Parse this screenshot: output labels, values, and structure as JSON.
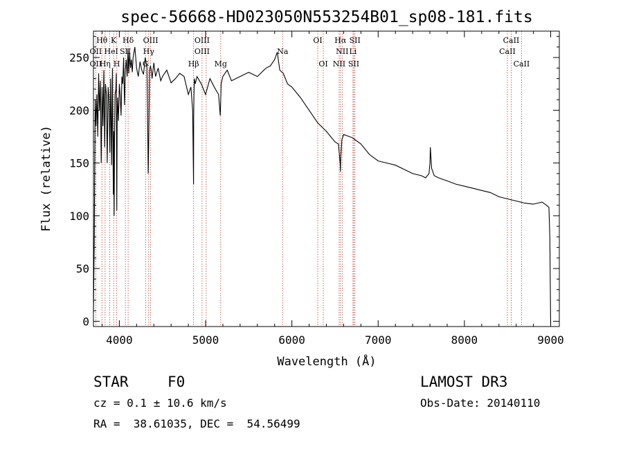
{
  "chart_data": {
    "type": "line",
    "title": "spec-56668-HD023050N553254B01_sp08-181.fits",
    "xlabel": "Wavelength (Å)",
    "ylabel": "Flux (relative)",
    "xlim": [
      3700,
      9100
    ],
    "ylim": [
      -5,
      275
    ],
    "xticks": [
      4000,
      5000,
      6000,
      7000,
      8000,
      9000
    ],
    "yticks": [
      0,
      50,
      100,
      150,
      200,
      250
    ],
    "grid": false,
    "series": [
      {
        "name": "flux",
        "x": [
          3700,
          3710,
          3720,
          3730,
          3740,
          3750,
          3760,
          3770,
          3780,
          3790,
          3800,
          3810,
          3820,
          3830,
          3840,
          3850,
          3860,
          3870,
          3880,
          3890,
          3900,
          3910,
          3920,
          3930,
          3935,
          3940,
          3945,
          3950,
          3960,
          3965,
          3970,
          3975,
          3980,
          3990,
          4000,
          4010,
          4020,
          4030,
          4040,
          4050,
          4060,
          4070,
          4080,
          4090,
          4095,
          4100,
          4105,
          4110,
          4120,
          4130,
          4140,
          4150,
          4160,
          4180,
          4200,
          4220,
          4240,
          4260,
          4280,
          4300,
          4320,
          4330,
          4335,
          4340,
          4345,
          4350,
          4360,
          4370,
          4380,
          4400,
          4420,
          4450,
          4480,
          4500,
          4550,
          4600,
          4650,
          4700,
          4750,
          4800,
          4830,
          4850,
          4860,
          4862,
          4865,
          4870,
          4880,
          4900,
          4950,
          5000,
          5050,
          5100,
          5150,
          5170,
          5180,
          5200,
          5250,
          5300,
          5400,
          5500,
          5600,
          5700,
          5750,
          5800,
          5830,
          5860,
          5900,
          5950,
          6000,
          6100,
          6200,
          6300,
          6400,
          6500,
          6540,
          6560,
          6563,
          6566,
          6580,
          6600,
          6700,
          6800,
          6900,
          7000,
          7100,
          7200,
          7300,
          7400,
          7500,
          7550,
          7590,
          7600,
          7605,
          7620,
          7650,
          7700,
          7800,
          7900,
          8000,
          8100,
          8200,
          8300,
          8400,
          8500,
          8600,
          8700,
          8800,
          8850,
          8900,
          8950,
          8980,
          8990,
          9000
        ],
        "y": [
          8,
          80,
          210,
          185,
          215,
          175,
          235,
          200,
          228,
          150,
          222,
          185,
          238,
          165,
          225,
          215,
          150,
          222,
          212,
          160,
          230,
          148,
          240,
          120,
          180,
          100,
          175,
          215,
          220,
          235,
          105,
          195,
          212,
          190,
          225,
          214,
          195,
          232,
          225,
          250,
          205,
          238,
          248,
          232,
          240,
          258,
          248,
          235,
          255,
          240,
          248,
          236,
          250,
          260,
          240,
          232,
          246,
          238,
          234,
          250,
          240,
          180,
          140,
          170,
          200,
          237,
          242,
          238,
          230,
          245,
          232,
          240,
          228,
          232,
          238,
          226,
          230,
          235,
          232,
          215,
          222,
          200,
          130,
          195,
          215,
          230,
          225,
          232,
          225,
          215,
          230,
          222,
          215,
          195,
          225,
          232,
          238,
          228,
          232,
          236,
          232,
          240,
          242,
          248,
          255,
          238,
          235,
          225,
          222,
          212,
          200,
          188,
          180,
          170,
          168,
          150,
          142,
          155,
          172,
          177,
          174,
          168,
          158,
          152,
          150,
          148,
          144,
          140,
          138,
          136,
          140,
          150,
          165,
          145,
          138,
          136,
          133,
          130,
          128,
          126,
          124,
          122,
          118,
          116,
          114,
          112,
          111,
          112,
          113,
          110,
          108,
          80,
          -3
        ]
      }
    ],
    "lines_top": [
      {
        "label": "Hθ",
        "x": 3798
      },
      {
        "label": "K",
        "x": 3934
      },
      {
        "label": "Hδ",
        "x": 4102
      },
      {
        "label": "OIII",
        "x": 4363
      },
      {
        "label": "OIII",
        "x": 4959
      },
      {
        "label": "OI",
        "x": 6300
      },
      {
        "label": "Hα",
        "x": 6563
      },
      {
        "label": "SII",
        "x": 6731
      },
      {
        "label": "CaII",
        "x": 8542
      }
    ],
    "lines_mid": [
      {
        "label": "OII",
        "x": 3727
      },
      {
        "label": "He",
        "x": 3889
      },
      {
        "label": "I",
        "x": 3970
      },
      {
        "label": "SII",
        "x": 4070
      },
      {
        "label": "Hγ",
        "x": 4340
      },
      {
        "label": "OIII",
        "x": 4959
      },
      {
        "label": "Na",
        "x": 5893
      },
      {
        "label": "NII",
        "x": 6583
      },
      {
        "label": "Li",
        "x": 6708
      },
      {
        "label": "CaII",
        "x": 8498
      }
    ],
    "lines_bot": [
      {
        "label": "OII",
        "x": 3727
      },
      {
        "label": "Hη",
        "x": 3835
      },
      {
        "label": "H",
        "x": 3970
      },
      {
        "label": "G",
        "x": 4304
      },
      {
        "label": "Hβ",
        "x": 4861
      },
      {
        "label": "Mg",
        "x": 5175
      },
      {
        "label": "OI",
        "x": 6364
      },
      {
        "label": "NII",
        "x": 6548
      },
      {
        "label": "SII",
        "x": 6717
      },
      {
        "label": "CaII",
        "x": 8662
      }
    ],
    "dotted_lines_x": [
      3727,
      3798,
      3835,
      3889,
      3934,
      3970,
      4070,
      4102,
      4304,
      4340,
      4363,
      4861,
      4959,
      5007,
      5175,
      5893,
      6300,
      6364,
      6548,
      6563,
      6583,
      6708,
      6717,
      6731,
      8498,
      8542,
      8662
    ]
  },
  "info": {
    "object_type": "STAR",
    "subclass": "F0",
    "survey": "LAMOST DR3",
    "cz": "cz = 0.1 ± 10.6 km/s",
    "obs_date": "Obs-Date: 20140110",
    "coords": "RA =  38.61035, DEC =  54.56499"
  }
}
